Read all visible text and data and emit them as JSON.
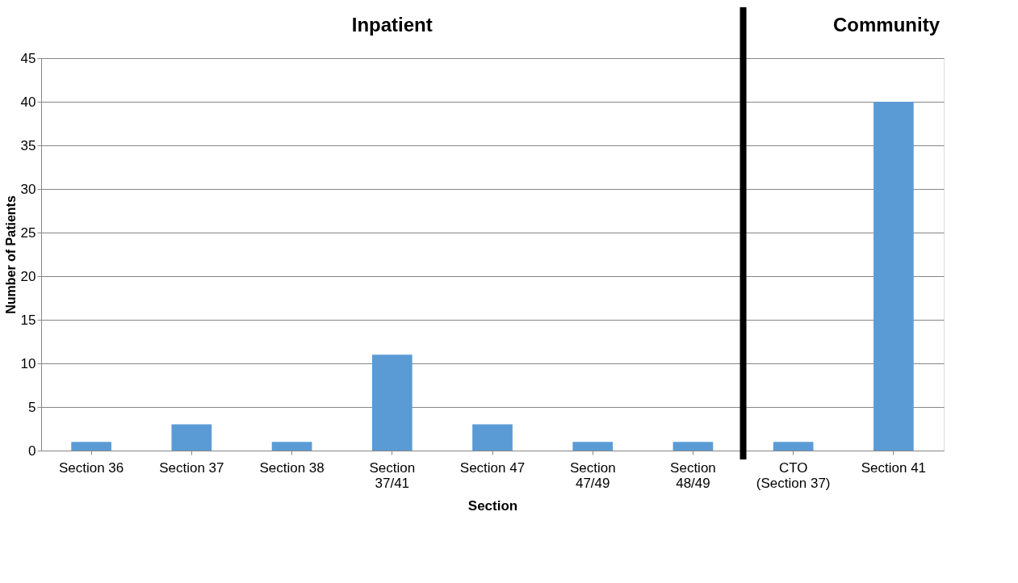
{
  "chart_data": {
    "type": "bar",
    "categories": [
      "Section 36",
      "Section 37",
      "Section 38",
      "Section\n37/41",
      "Section 47",
      "Section\n47/49",
      "Section\n48/49",
      "CTO\n(Section 37)",
      "Section 41"
    ],
    "values": [
      1,
      3,
      1,
      11,
      3,
      1,
      1,
      1,
      40
    ],
    "color": "#5b9bd5",
    "xlabel": "Section",
    "ylabel": "Number of Patients",
    "ylim": [
      0,
      45
    ],
    "yticks": [
      0,
      5,
      10,
      15,
      20,
      25,
      30,
      35,
      40,
      45
    ],
    "grid": "y",
    "annotations": [
      "Inpatient",
      "Community"
    ],
    "ref_lines": [
      {
        "axis": "x",
        "value": "CTO\n(Section 37)",
        "color": "#000000"
      }
    ]
  }
}
